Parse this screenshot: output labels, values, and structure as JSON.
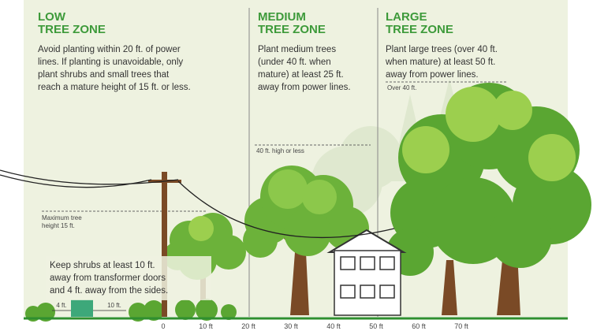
{
  "zones": [
    {
      "title": [
        "LOW",
        "TREE ZONE"
      ],
      "text": [
        "Avoid planting within 20 ft. of power",
        "lines. If planting is unavoidable, only",
        "plant shrubs and small trees that",
        "reach a mature height of 15 ft. or less."
      ]
    },
    {
      "title": [
        "MEDIUM",
        "TREE ZONE"
      ],
      "text": [
        "Plant medium trees",
        "(under 40 ft. when",
        "mature) at least 25 ft.",
        "away from power lines."
      ]
    },
    {
      "title": [
        "LARGE",
        "TREE ZONE"
      ],
      "text": [
        "Plant large trees (over 40 ft.",
        "when mature) at least 50 ft.",
        "away from power lines."
      ]
    }
  ],
  "height_labels": {
    "low": [
      "Maximum tree",
      "height 15 ft."
    ],
    "medium": [
      "40 ft. high or less"
    ],
    "large": [
      "Over 40 ft."
    ]
  },
  "shrub_note": [
    "Keep shrubs at least 10 ft.",
    "away from transformer doors",
    "and 4 ft. away from the sides."
  ],
  "transformer_labels": [
    "4 ft.",
    "10 ft."
  ],
  "scale": [
    "0",
    "10 ft",
    "20 ft",
    "30 ft",
    "40 ft",
    "50 ft",
    "60 ft",
    "70 ft"
  ]
}
